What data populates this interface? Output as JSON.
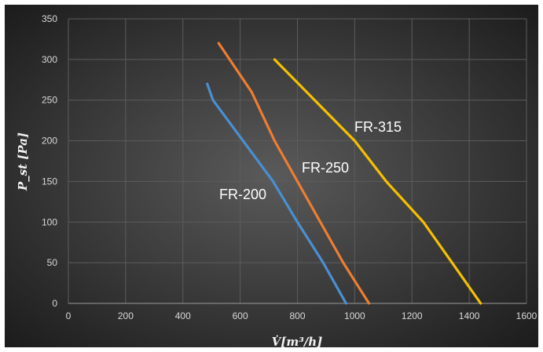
{
  "chart_data": {
    "type": "line",
    "title": "",
    "xlabel": "V̇[m³/h]",
    "ylabel": "P_st [Pa]",
    "xlim": [
      0,
      1600
    ],
    "ylim": [
      0,
      350
    ],
    "x_ticks": [
      0,
      200,
      400,
      600,
      800,
      1000,
      1200,
      1400,
      1600
    ],
    "y_ticks": [
      0,
      50,
      100,
      150,
      200,
      250,
      300,
      350
    ],
    "grid": true,
    "legend": "none",
    "background": "#2b2b2b",
    "series": [
      {
        "name": "FR-200",
        "color": "#4a8fd1",
        "points": [
          [
            485,
            270
          ],
          [
            505,
            250
          ],
          [
            610,
            200
          ],
          [
            715,
            150
          ],
          [
            800,
            100
          ],
          [
            890,
            50
          ],
          [
            970,
            0
          ]
        ]
      },
      {
        "name": "FR-250",
        "color": "#ed7d31",
        "points": [
          [
            525,
            320
          ],
          [
            640,
            260
          ],
          [
            720,
            200
          ],
          [
            800,
            150
          ],
          [
            880,
            100
          ],
          [
            960,
            50
          ],
          [
            1050,
            0
          ]
        ]
      },
      {
        "name": "FR-315",
        "color": "#f5c000",
        "points": [
          [
            720,
            300
          ],
          [
            860,
            250
          ],
          [
            1000,
            200
          ],
          [
            1110,
            150
          ],
          [
            1240,
            100
          ],
          [
            1340,
            50
          ],
          [
            1440,
            0
          ]
        ]
      }
    ]
  }
}
